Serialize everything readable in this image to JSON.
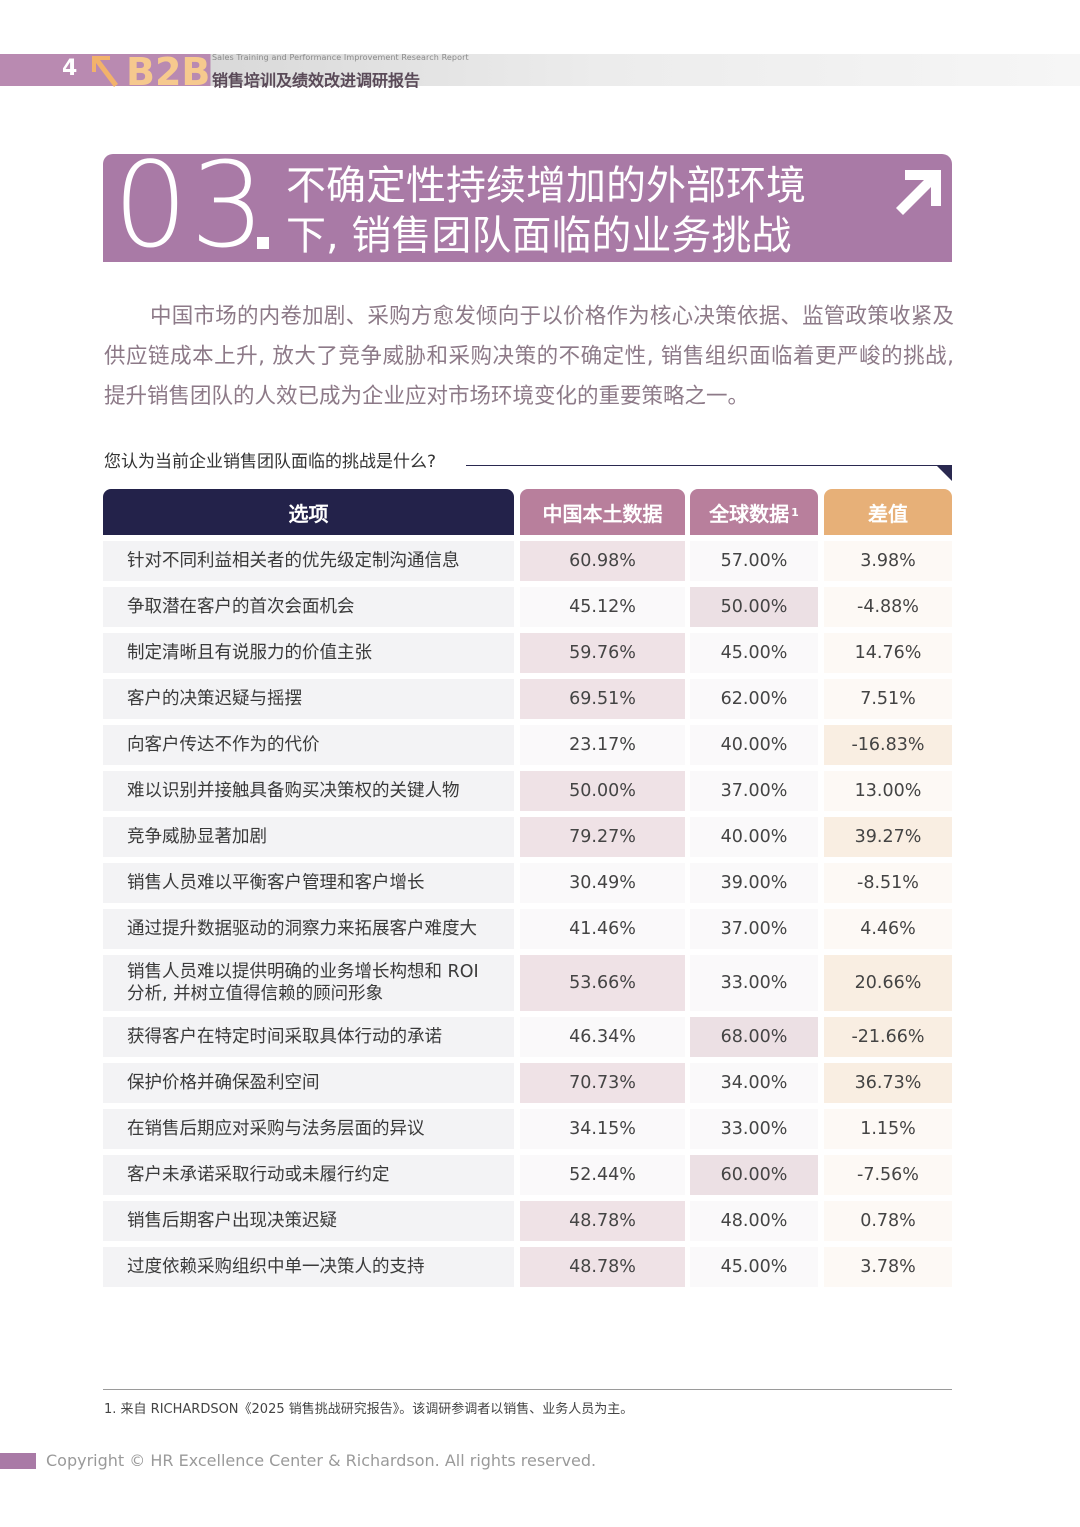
{
  "header": {
    "page_number": "4",
    "logo_text": "B2B",
    "subtitle_en": "Sales Training and Performance Improvement Research Report",
    "title_cn": "销售培训及绩效改进调研报告"
  },
  "section": {
    "number": "03",
    "title_line1": "不确定性持续增加的外部环境",
    "title_line2": "下, 销售团队面临的业务挑战"
  },
  "intro_text": "中国市场的内卷加剧、采购方愈发倾向于以价格作为核心决策依据、监管政策收紧及供应链成本上升, 放大了竞争威胁和采购决策的不确定性, 销售组织面临着更严峻的挑战, 提升销售团队的人效已成为企业应对市场环境变化的重要策略之一。",
  "question": "您认为当前企业销售团队面临的挑战是什么?",
  "table": {
    "headers": {
      "option": "选项",
      "china": "中国本土数据",
      "global": "全球数据",
      "global_sup": "1",
      "diff": "差值"
    },
    "rows": [
      {
        "option": "针对不同利益相关者的优先级定制沟通信息",
        "china": "60.98%",
        "global": "57.00%",
        "diff": "3.98%"
      },
      {
        "option": "争取潜在客户的首次会面机会",
        "china": "45.12%",
        "global": "50.00%",
        "diff": "-4.88%"
      },
      {
        "option": "制定清晰且有说服力的价值主张",
        "china": "59.76%",
        "global": "45.00%",
        "diff": "14.76%"
      },
      {
        "option": "客户的决策迟疑与摇摆",
        "china": "69.51%",
        "global": "62.00%",
        "diff": "7.51%"
      },
      {
        "option": "向客户传达不作为的代价",
        "china": "23.17%",
        "global": "40.00%",
        "diff": "-16.83%"
      },
      {
        "option": "难以识别并接触具备购买决策权的关键人物",
        "china": "50.00%",
        "global": "37.00%",
        "diff": "13.00%"
      },
      {
        "option": "竞争威胁显著加剧",
        "china": "79.27%",
        "global": "40.00%",
        "diff": "39.27%"
      },
      {
        "option": "销售人员难以平衡客户管理和客户增长",
        "china": "30.49%",
        "global": "39.00%",
        "diff": "-8.51%"
      },
      {
        "option": "通过提升数据驱动的洞察力来拓展客户难度大",
        "china": "41.46%",
        "global": "37.00%",
        "diff": "4.46%"
      },
      {
        "option": "销售人员难以提供明确的业务增长构想和 ROI 分析, 并树立值得信赖的顾问形象",
        "china": "53.66%",
        "global": "33.00%",
        "diff": "20.66%"
      },
      {
        "option": "获得客户在特定时间采取具体行动的承诺",
        "china": "46.34%",
        "global": "68.00%",
        "diff": "-21.66%"
      },
      {
        "option": "保护价格并确保盈利空间",
        "china": "70.73%",
        "global": "34.00%",
        "diff": "36.73%"
      },
      {
        "option": "在销售后期应对采购与法务层面的异议",
        "china": "34.15%",
        "global": "33.00%",
        "diff": "1.15%"
      },
      {
        "option": "客户未承诺采取行动或未履行约定",
        "china": "52.44%",
        "global": "60.00%",
        "diff": "-7.56%"
      },
      {
        "option": "销售后期客户出现决策迟疑",
        "china": "48.78%",
        "global": "48.00%",
        "diff": "0.78%"
      },
      {
        "option": "过度依赖采购组织中单一决策人的支持",
        "china": "48.78%",
        "global": "45.00%",
        "diff": "3.78%"
      }
    ]
  },
  "footnote": "1. 来自 RICHARDSON《2025 销售挑战研究报告》。该调研参调者以销售、业务人员为主。",
  "copyright": "Copyright © HR Excellence Center & Richardson. All rights reserved.",
  "colors": {
    "purple": "#a97aa6",
    "navy": "#23224a",
    "mauve": "#b87f9c",
    "gold": "#e7b078"
  }
}
